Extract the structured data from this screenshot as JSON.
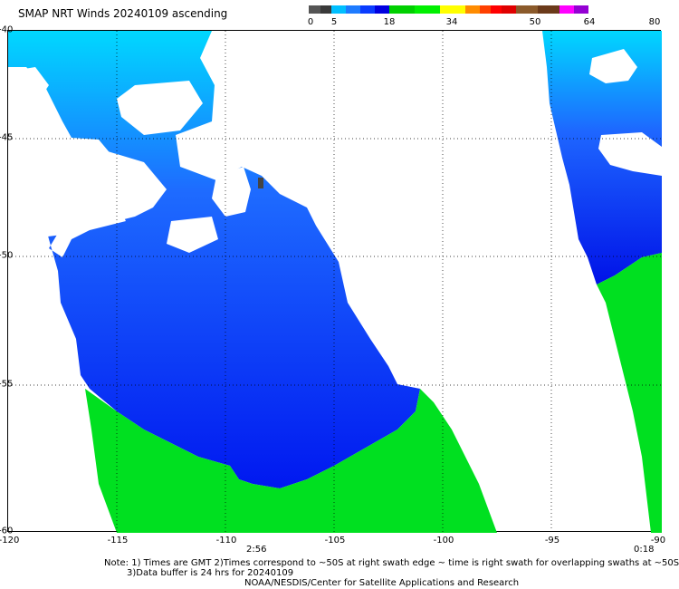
{
  "title": "SMAP NRT Winds 20240109 ascending",
  "colorbar": {
    "labels": [
      "0",
      "5",
      "18",
      "34",
      "50",
      "64",
      "80"
    ],
    "colors": [
      "#555555",
      "#3a3a3a",
      "#00bfff",
      "#1e7bff",
      "#0a3cff",
      "#0000e0",
      "#00d000",
      "#00f000",
      "#ffff00",
      "#ff8c00",
      "#ff4000",
      "#ff0000",
      "#e00000",
      "#8b5a2b",
      "#6b3a1a",
      "#ff00ff",
      "#9400d3"
    ]
  },
  "axes": {
    "lat_labels": [
      "-40",
      "-45",
      "-50",
      "-55",
      "-60"
    ],
    "lon_labels": [
      "-120",
      "-115",
      "-110",
      "-105",
      "-100",
      "-95",
      "-90"
    ]
  },
  "times": {
    "left": "2:56",
    "right": "0:18"
  },
  "notes": {
    "line1": "Note: 1) Times are GMT 2)Times correspond to ~50S at right swath edge ~ time is right swath for overlapping swaths at ~50S",
    "line2": "3)Data buffer is 24 hrs for 20240109",
    "line3": "NOAA/NESDIS/Center for Satellite Applications and Research"
  }
}
